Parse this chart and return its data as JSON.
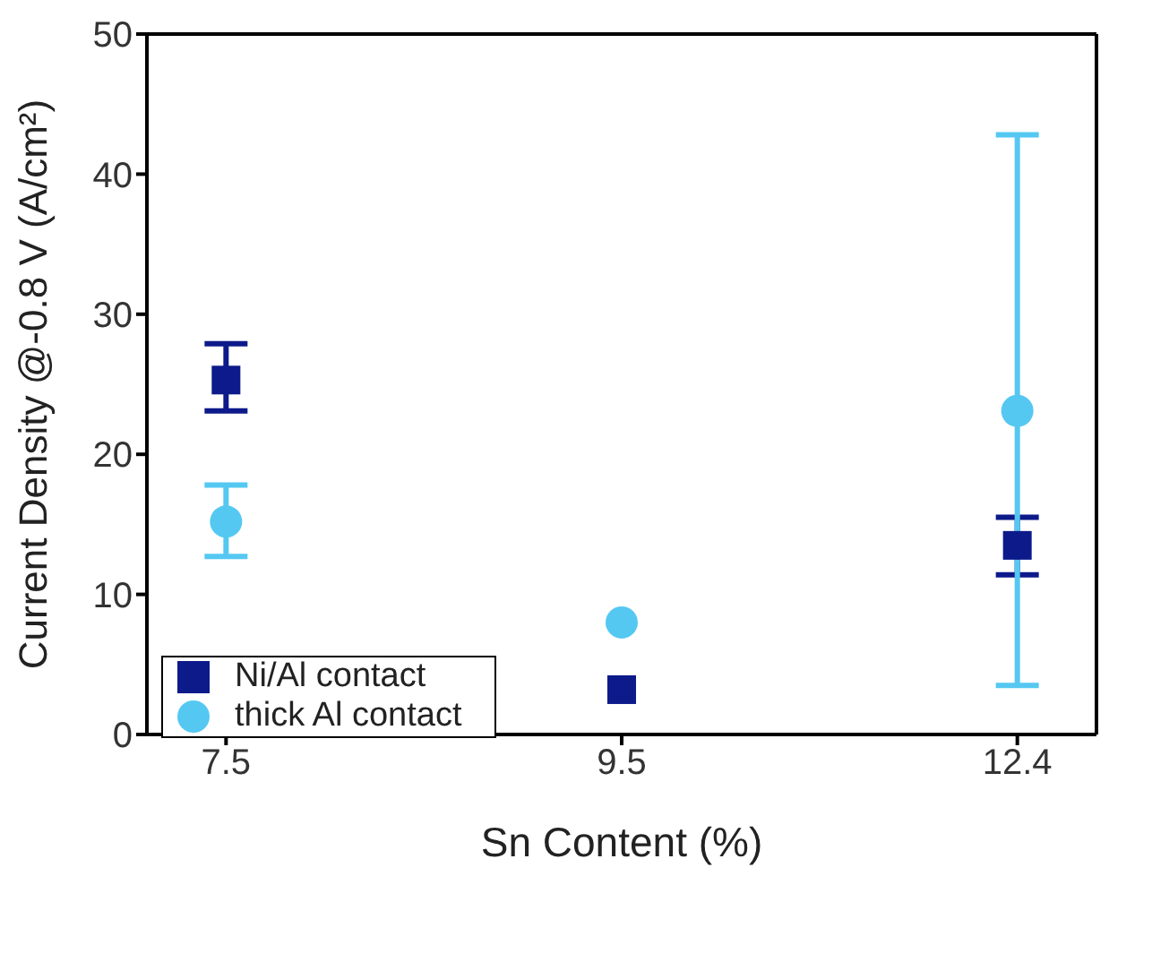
{
  "chart_data": {
    "type": "scatter",
    "xlabel": "Sn Content (%)",
    "ylabel": "Current Density @-0.8 V (A/cm²)",
    "categories": [
      "7.5",
      "9.5",
      "12.4"
    ],
    "series": [
      {
        "name": "Ni/Al contact",
        "color": "#0d1a8a",
        "marker": "square",
        "values": [
          25.3,
          3.2,
          13.5
        ],
        "errors": [
          [
            23.1,
            27.9
          ],
          null,
          [
            11.4,
            15.5
          ]
        ]
      },
      {
        "name": "thick Al contact",
        "color": "#55c8f2",
        "marker": "circle",
        "values": [
          15.2,
          8.0,
          23.1
        ],
        "errors": [
          [
            12.7,
            17.8
          ],
          null,
          [
            3.5,
            42.8
          ]
        ]
      }
    ],
    "ylim": [
      0,
      50
    ],
    "yticks": [
      0,
      10,
      20,
      30,
      40,
      50
    ],
    "legend": "bottom left"
  }
}
